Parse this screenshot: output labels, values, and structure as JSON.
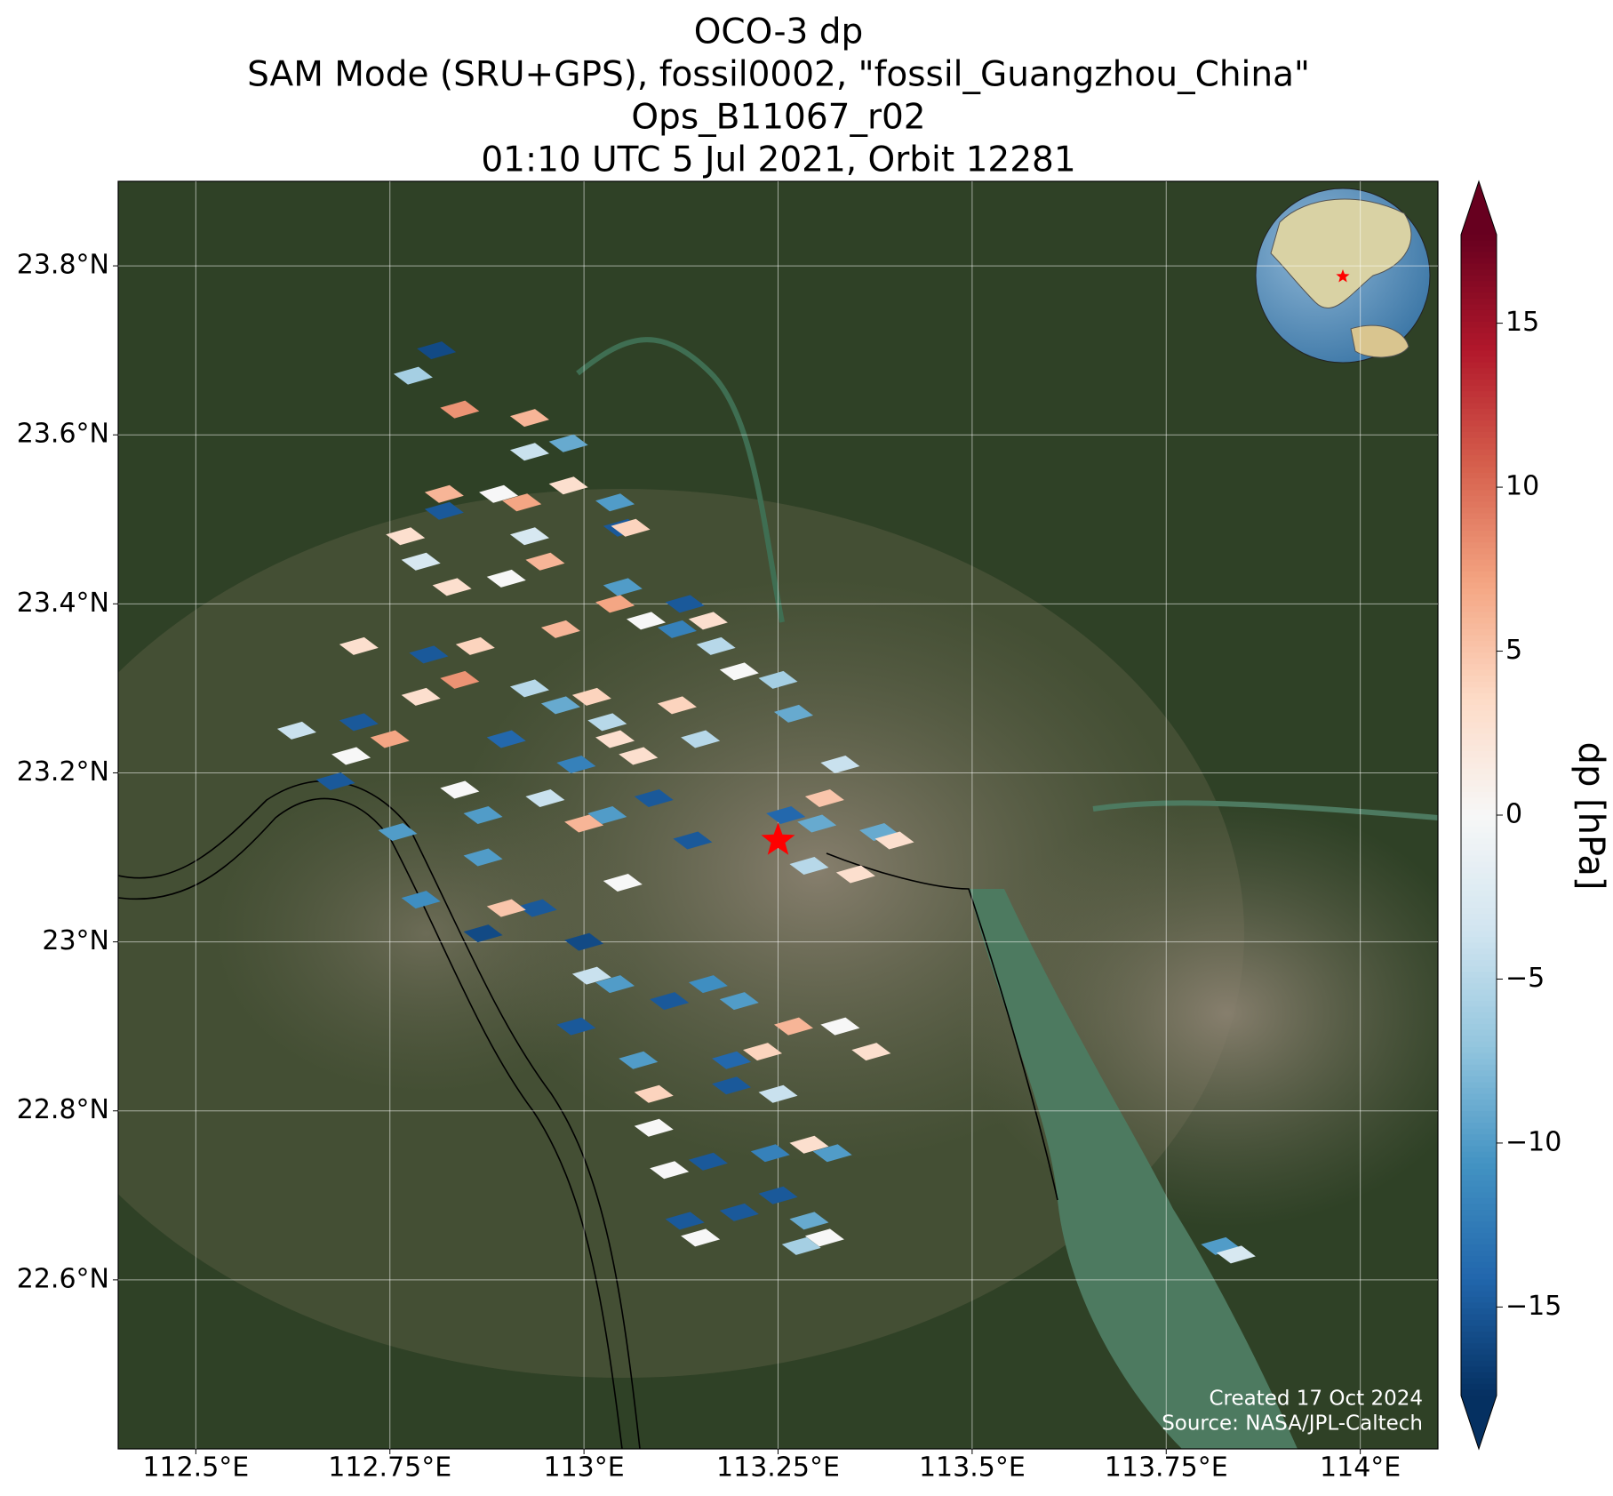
{
  "chart_data": {
    "type": "footprint-map",
    "title_lines": [
      "OCO-3 dp",
      "SAM Mode (SRU+GPS), fossil0002, \"fossil_Guangzhou_China\"",
      "Ops_B11067_r02",
      "01:10 UTC 5 Jul 2021, Orbit 12281"
    ],
    "colorbar_label": "dp [hPa]",
    "colormap": "RdBu_r",
    "clim": [
      -17.7,
      17.7
    ],
    "cticks": [
      {
        "value": -15,
        "label": "−15"
      },
      {
        "value": -10,
        "label": "−10"
      },
      {
        "value": -5,
        "label": "−5"
      },
      0,
      5,
      10,
      15
    ],
    "xlim": [
      112.4,
      114.1
    ],
    "ylim": [
      22.4,
      23.9
    ],
    "xticks": [
      {
        "value": 112.5,
        "label": "112.5°E"
      },
      {
        "value": 112.75,
        "label": "112.75°E"
      },
      {
        "value": 113,
        "label": "113°E"
      },
      {
        "value": 113.25,
        "label": "113.25°E"
      },
      {
        "value": 113.5,
        "label": "113.5°E"
      },
      {
        "value": 113.75,
        "label": "113.75°E"
      },
      {
        "value": 114,
        "label": "114°E"
      }
    ],
    "yticks": [
      {
        "value": 22.6,
        "label": "22.6°N"
      },
      {
        "value": 22.8,
        "label": "22.8°N"
      },
      {
        "value": 23,
        "label": "23°N"
      },
      {
        "value": 23.2,
        "label": "23.2°N"
      },
      {
        "value": 23.4,
        "label": "23.4°N"
      },
      {
        "value": 23.6,
        "label": "23.6°N"
      },
      {
        "value": 23.8,
        "label": "23.8°N"
      }
    ],
    "grid": true,
    "target": {
      "x": 113.25,
      "y": 23.12,
      "color": "#ff0000"
    },
    "credits": [
      "Created 17 Oct 2024",
      "Source: NASA/JPL-Caltech"
    ],
    "x": [
      112.78,
      112.81,
      112.84,
      112.93,
      112.93,
      112.98,
      112.82,
      112.82,
      112.89,
      112.92,
      112.98,
      113.04,
      113.05,
      113.06,
      112.93,
      112.95,
      112.77,
      112.79,
      112.83,
      113.04,
      113.05,
      113.08,
      112.9,
      112.97,
      113.13,
      113.16,
      113.12,
      113.17,
      113.2,
      112.71,
      112.8,
      112.84,
      112.86,
      112.79,
      112.93,
      113.01,
      112.97,
      113.03,
      112.9,
      112.99,
      113.04,
      112.63,
      112.71,
      112.75,
      112.7,
      112.68,
      112.76,
      112.84,
      112.87,
      112.95,
      113.0,
      113.03,
      113.14,
      112.87,
      112.94,
      112.9,
      112.87,
      113.0,
      112.79,
      113.05,
      113.01,
      113.04,
      113.11,
      113.16,
      113.2,
      112.99,
      113.07,
      113.09,
      113.19,
      113.23,
      113.27,
      113.33,
      113.37,
      113.19,
      113.25,
      113.09,
      113.24,
      113.29,
      113.32,
      113.16,
      113.11,
      113.25,
      113.2,
      113.29,
      113.13,
      113.15,
      113.31,
      113.28,
      113.82,
      113.84,
      113.25,
      113.27,
      113.26,
      113.33,
      113.31,
      113.3,
      113.29,
      113.35,
      113.38,
      113.4,
      113.12,
      113.15,
      113.09,
      113.07
    ],
    "y": [
      23.67,
      23.7,
      23.63,
      23.62,
      23.58,
      23.59,
      23.53,
      23.51,
      23.53,
      23.52,
      23.54,
      23.52,
      23.49,
      23.49,
      23.48,
      23.45,
      23.48,
      23.45,
      23.42,
      23.4,
      23.42,
      23.38,
      23.43,
      23.37,
      23.4,
      23.38,
      23.37,
      23.35,
      23.32,
      23.35,
      23.34,
      23.31,
      23.35,
      23.29,
      23.3,
      23.29,
      23.28,
      23.26,
      23.24,
      23.21,
      23.24,
      23.25,
      23.26,
      23.24,
      23.22,
      23.19,
      23.13,
      23.18,
      23.15,
      23.17,
      23.14,
      23.15,
      23.12,
      23.1,
      23.04,
      23.04,
      23.01,
      23.0,
      23.05,
      23.07,
      22.96,
      22.95,
      22.93,
      22.95,
      22.93,
      22.9,
      22.86,
      22.82,
      22.86,
      22.87,
      22.9,
      22.9,
      22.87,
      22.83,
      22.82,
      22.78,
      22.75,
      22.76,
      22.75,
      22.74,
      22.73,
      22.7,
      22.68,
      22.67,
      22.67,
      22.65,
      22.65,
      22.64,
      22.64,
      22.63,
      23.31,
      23.27,
      23.15,
      23.21,
      23.17,
      23.14,
      23.09,
      23.08,
      23.13,
      23.12,
      23.28,
      23.24,
      23.17,
      23.22
    ],
    "values": [
      -6,
      -16,
      8,
      6,
      -4,
      -9,
      6,
      -15,
      0,
      7,
      3,
      -10,
      -15,
      4,
      -3,
      6,
      3,
      -3,
      3,
      7,
      -10,
      0,
      0,
      6,
      -15,
      3,
      -12,
      -5,
      0,
      3,
      -15,
      8,
      4,
      3,
      -5,
      4,
      -9,
      -5,
      -14,
      -12,
      3,
      -4,
      -15,
      7,
      0,
      -15,
      -10,
      0,
      -10,
      -4,
      6,
      -10,
      -15,
      -10,
      -15,
      5,
      -16,
      -16,
      -11,
      0,
      -4,
      -10,
      -15,
      -11,
      -10,
      -15,
      -10,
      4,
      -14,
      4,
      6,
      0,
      3,
      -15,
      -4,
      0,
      -12,
      3,
      -10,
      -15,
      0,
      -15,
      -15,
      -9,
      -15,
      0,
      0,
      -6,
      -10,
      -3,
      -6,
      -9,
      -14,
      -4,
      5,
      -9,
      -5,
      3,
      -9,
      3,
      4,
      -5,
      -15,
      3
    ]
  }
}
